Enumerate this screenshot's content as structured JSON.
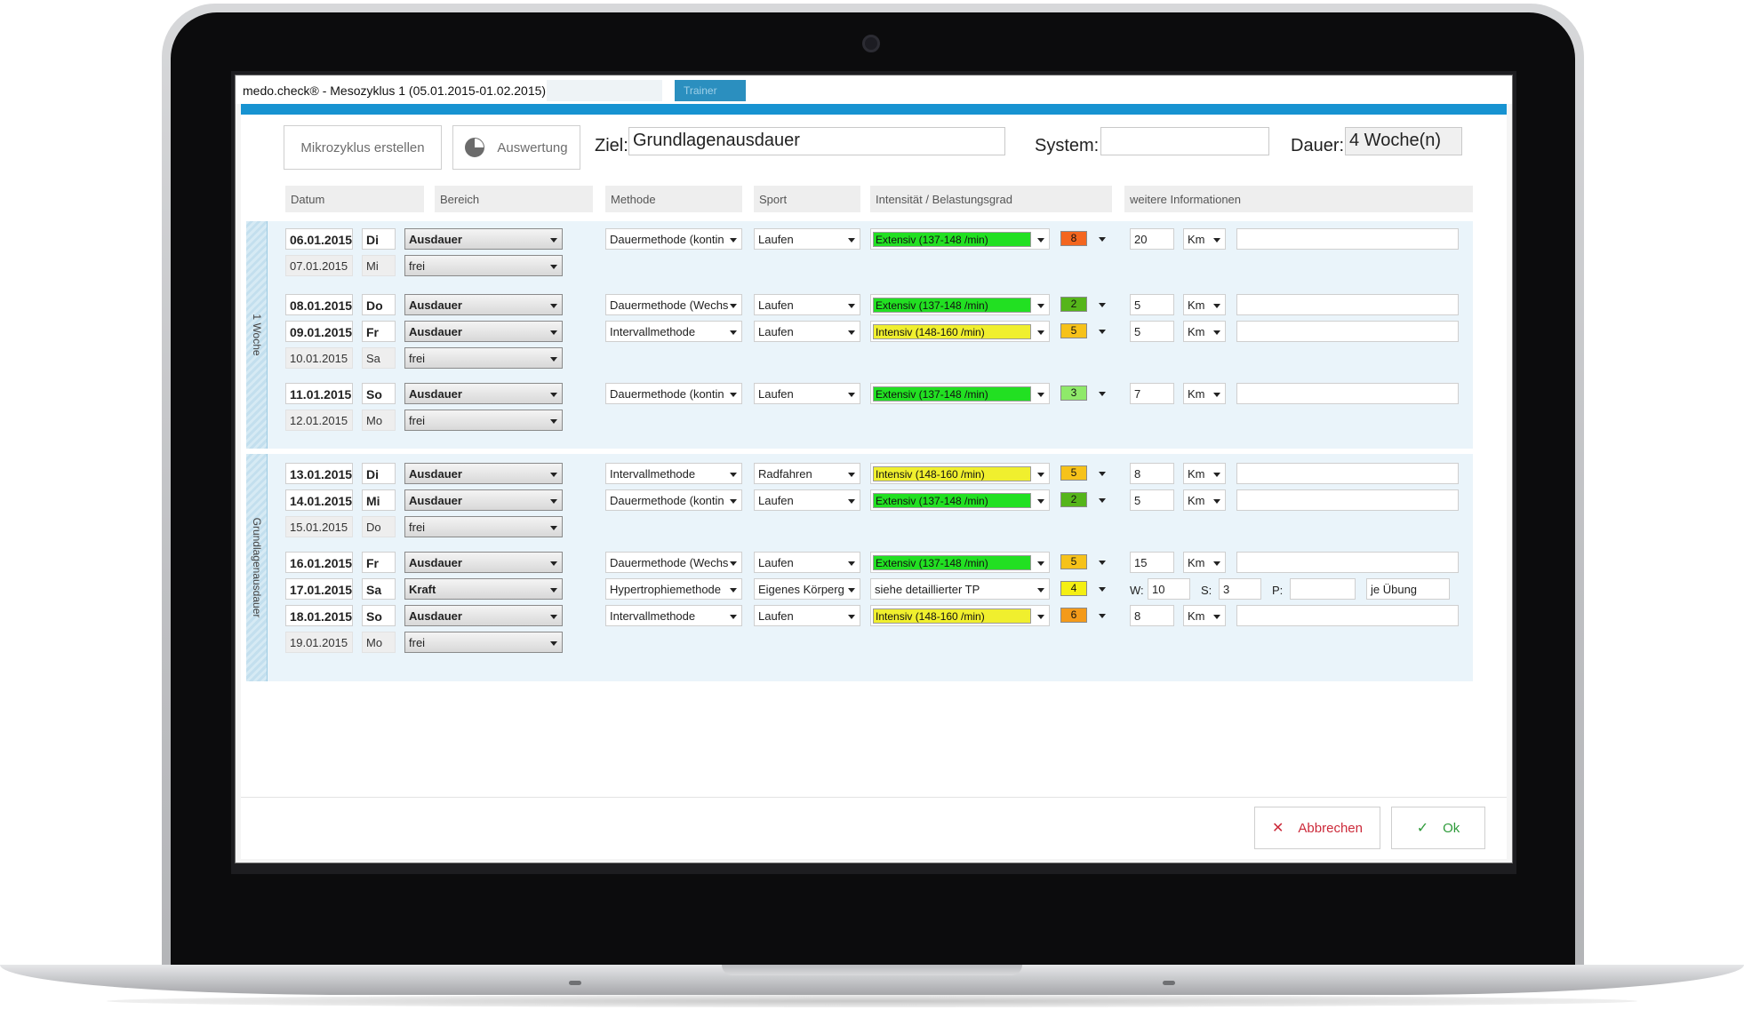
{
  "window": {
    "title": "medo.check® - Mesozyklus 1 (05.01.2015-01.02.2015)",
    "ghost_tabs": [
      "",
      "Trainer"
    ]
  },
  "toolbar": {
    "mikrozyklus_label": "Mikrozyklus erstellen",
    "auswertung_label": "Auswertung",
    "ziel_label": "Ziel:",
    "ziel_value": "Grundlagenausdauer",
    "system_label": "System:",
    "system_value": "",
    "dauer_label": "Dauer:",
    "dauer_value": "4 Woche(n)"
  },
  "columns": {
    "datum": "Datum",
    "bereich": "Bereich",
    "methode": "Methode",
    "sport": "Sport",
    "intensitaet": "Intensität / Belastungsgrad",
    "weitere": "weitere Informationen"
  },
  "weeks": [
    {
      "label": "1 Woche"
    },
    {
      "label": "Grundlagenausdauer"
    }
  ],
  "colors": {
    "accent_blue": "#1793d1",
    "extensiv": "#22e022",
    "intensiv": "#f0ef2e",
    "level_8": "#f4661f",
    "level_2": "#55b51a",
    "level_5": "#f6c21a",
    "level_3": "#8fe96a",
    "level_4": "#f4ef13",
    "level_6": "#f49a1a"
  },
  "rows": [
    {
      "date": "06.01.2015",
      "day": "Di",
      "bereich": "Ausdauer",
      "methode": "Dauermethode (kontin",
      "sport": "Laufen",
      "intensity": "Extensiv (137-148 /min)",
      "itype": "ext",
      "level": "8",
      "lcolor": "#f4661f",
      "amount": "20",
      "unit": "Km",
      "info": ""
    },
    {
      "date": "07.01.2015",
      "day": "Mi",
      "bereich": "frei"
    },
    {
      "date": "08.01.2015",
      "day": "Do",
      "bereich": "Ausdauer",
      "methode": "Dauermethode (Wechs",
      "sport": "Laufen",
      "intensity": "Extensiv (137-148 /min)",
      "itype": "ext",
      "level": "2",
      "lcolor": "#55b51a",
      "amount": "5",
      "unit": "Km",
      "info": ""
    },
    {
      "date": "09.01.2015",
      "day": "Fr",
      "bereich": "Ausdauer",
      "methode": "Intervallmethode",
      "sport": "Laufen",
      "intensity": "Intensiv (148-160 /min)",
      "itype": "int",
      "level": "5",
      "lcolor": "#f6c21a",
      "amount": "5",
      "unit": "Km",
      "info": ""
    },
    {
      "date": "10.01.2015",
      "day": "Sa",
      "bereich": "frei"
    },
    {
      "date": "11.01.2015",
      "day": "So",
      "bereich": "Ausdauer",
      "methode": "Dauermethode (kontin",
      "sport": "Laufen",
      "intensity": "Extensiv (137-148 /min)",
      "itype": "ext",
      "level": "3",
      "lcolor": "#8fe96a",
      "amount": "7",
      "unit": "Km",
      "info": ""
    },
    {
      "date": "12.01.2015",
      "day": "Mo",
      "bereich": "frei"
    },
    {
      "date": "13.01.2015",
      "day": "Di",
      "bereich": "Ausdauer",
      "methode": "Intervallmethode",
      "sport": "Radfahren",
      "intensity": "Intensiv (148-160 /min)",
      "itype": "int",
      "level": "5",
      "lcolor": "#f6c21a",
      "amount": "8",
      "unit": "Km",
      "info": ""
    },
    {
      "date": "14.01.2015",
      "day": "Mi",
      "bereich": "Ausdauer",
      "methode": "Dauermethode (kontin",
      "sport": "Laufen",
      "intensity": "Extensiv (137-148 /min)",
      "itype": "ext",
      "level": "2",
      "lcolor": "#55b51a",
      "amount": "5",
      "unit": "Km",
      "info": ""
    },
    {
      "date": "15.01.2015",
      "day": "Do",
      "bereich": "frei"
    },
    {
      "date": "16.01.2015",
      "day": "Fr",
      "bereich": "Ausdauer",
      "methode": "Dauermethode (Wechs",
      "sport": "Laufen",
      "intensity": "Extensiv (137-148 /min)",
      "itype": "ext",
      "level": "5",
      "lcolor": "#f6c21a",
      "amount": "15",
      "unit": "Km",
      "info": ""
    },
    {
      "date": "17.01.2015",
      "day": "Sa",
      "bereich": "Kraft",
      "methode": "Hypertrophiemethode",
      "sport": "Eigenes Körperg",
      "intensity": "siehe detaillierter TP",
      "itype": "plain",
      "level": "4",
      "lcolor": "#f4ef13",
      "kraft": {
        "w_label": "W:",
        "w": "10",
        "s_label": "S:",
        "s": "3",
        "p_label": "P:",
        "p": "",
        "per": "je Übung"
      }
    },
    {
      "date": "18.01.2015",
      "day": "So",
      "bereich": "Ausdauer",
      "methode": "Intervallmethode",
      "sport": "Laufen",
      "intensity": "Intensiv (148-160 /min)",
      "itype": "int",
      "level": "6",
      "lcolor": "#f49a1a",
      "amount": "8",
      "unit": "Km",
      "info": ""
    },
    {
      "date": "19.01.2015",
      "day": "Mo",
      "bereich": "frei"
    }
  ],
  "footer": {
    "cancel_label": "Abbrechen",
    "ok_label": "Ok"
  }
}
